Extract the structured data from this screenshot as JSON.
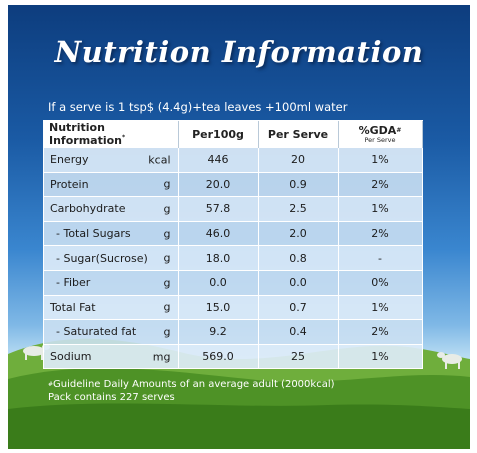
{
  "title": "Nutrition Information",
  "serve_line": "If a serve is 1 tsp$ (4.4g)+tea leaves +100ml water",
  "table": {
    "headers": {
      "nutrition": "Nutrition Information",
      "nutrition_mark": "*",
      "per100g": "Per100g",
      "per_serve": "Per Serve",
      "gda": "%GDA",
      "gda_mark": "#",
      "gda_sub": "Per Serve"
    },
    "rows": [
      {
        "name": "Energy",
        "unit": "kcal",
        "per100g": "446",
        "per_serve": "20",
        "gda": "1%"
      },
      {
        "name": "Protein",
        "unit": "g",
        "per100g": "20.0",
        "per_serve": "0.9",
        "gda": "2%"
      },
      {
        "name": "Carbohydrate",
        "unit": "g",
        "per100g": "57.8",
        "per_serve": "2.5",
        "gda": "1%"
      },
      {
        "name": "- Total Sugars",
        "unit": "g",
        "per100g": "46.0",
        "per_serve": "2.0",
        "gda": "2%"
      },
      {
        "name": "- Sugar(Sucrose)",
        "unit": "g",
        "per100g": "18.0",
        "per_serve": "0.8",
        "gda": "-"
      },
      {
        "name": "- Fiber",
        "unit": "g",
        "per100g": "0.0",
        "per_serve": "0.0",
        "gda": "0%"
      },
      {
        "name": "Total Fat",
        "unit": "g",
        "per100g": "15.0",
        "per_serve": "0.7",
        "gda": "1%"
      },
      {
        "name": "- Saturated fat",
        "unit": "g",
        "per100g": "9.2",
        "per_serve": "0.4",
        "gda": "2%"
      },
      {
        "name": "Sodium",
        "unit": "mg",
        "per100g": "569.0",
        "per_serve": "25",
        "gda": "1%"
      }
    ]
  },
  "footnote": {
    "mark": "#",
    "line1": "Guideline Daily Amounts of an average adult (2000kcal)",
    "line2": "Pack contains 227 serves"
  },
  "colors": {
    "sky_top": "#0d3d7e",
    "grass": "#4f9a2a",
    "text_white": "#ffffff"
  }
}
